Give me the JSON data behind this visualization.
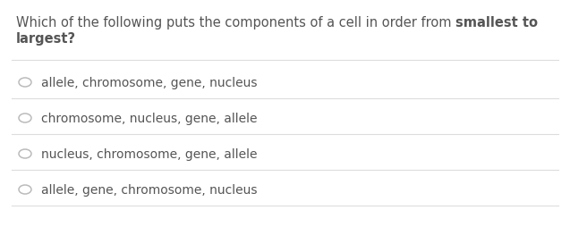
{
  "q_part1": "Which of the following puts the components of a cell in order from ",
  "q_bold": "smallest to",
  "q_line2": "largest?",
  "options": [
    "allele, chromosome, gene, nucleus",
    "chromosome, nucleus, gene, allele",
    "nucleus, chromosome, gene, allele",
    "allele, gene, chromosome, nucleus"
  ],
  "background_color": "#ffffff",
  "text_color": "#555555",
  "line_color": "#dddddd",
  "circle_color": "#bbbbbb",
  "font_size_question": 10.5,
  "font_size_options": 10.0
}
